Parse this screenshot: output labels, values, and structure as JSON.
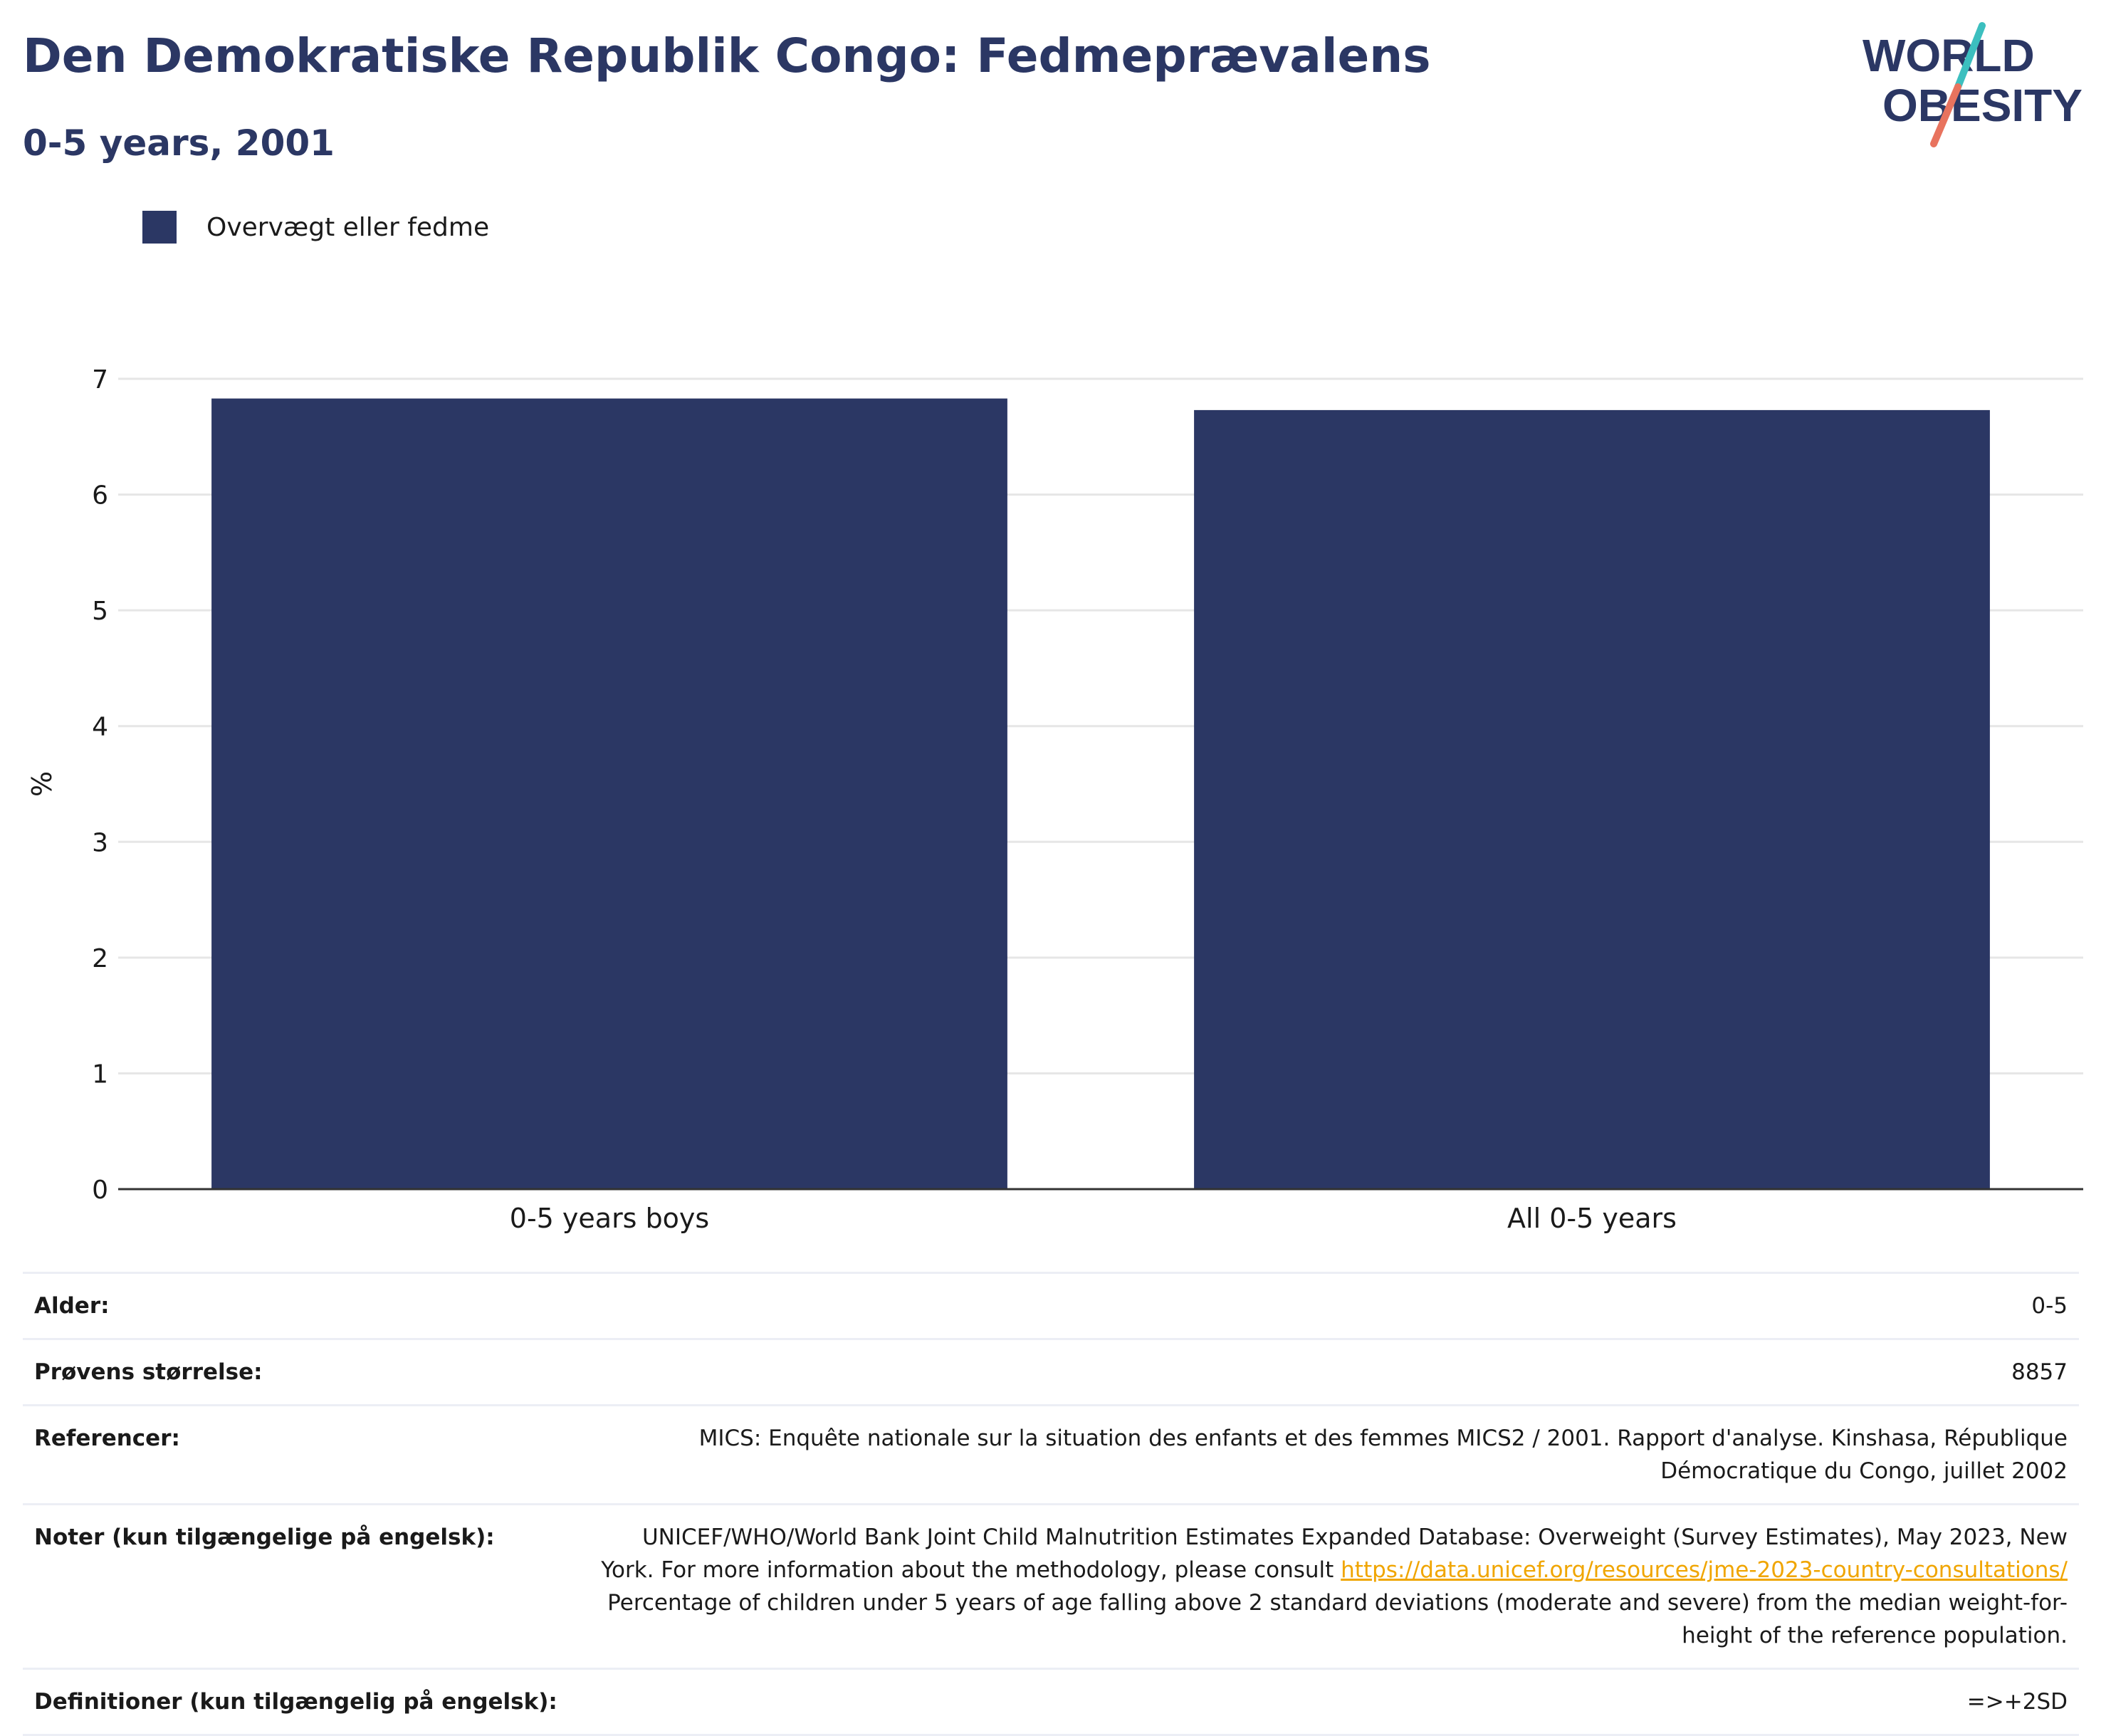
{
  "header": {
    "title": "Den Demokratiske Republik Congo: Fedmeprævalens",
    "subtitle": "0-5 years, 2001"
  },
  "logo": {
    "line1": "WORLD",
    "line2": "OBESITY",
    "icon": "world-obesity-logo"
  },
  "colors": {
    "bar": "#2b3764",
    "title": "#2b3764",
    "logo_teal": "#3cbfbf",
    "logo_coral": "#e8735e",
    "link": "#f0a500",
    "grid": "#e6e6e6",
    "axis": "#333333"
  },
  "legend": {
    "label": "Overvægt eller fedme",
    "placement": "top-left"
  },
  "chart_data": {
    "type": "bar",
    "categories": [
      "0-5 years boys",
      "All 0-5 years"
    ],
    "series": [
      {
        "name": "Overvægt eller fedme",
        "values": [
          6.83,
          6.73
        ]
      }
    ],
    "ylabel": "%",
    "xlabel": "",
    "ylim": [
      0,
      7
    ],
    "yticks": [
      0,
      1,
      2,
      3,
      4,
      5,
      6,
      7
    ],
    "grid": true
  },
  "info": [
    {
      "label": "Alder:",
      "value": "0-5"
    },
    {
      "label": "Prøvens størrelse:",
      "value": "8857"
    },
    {
      "label": "Referencer:",
      "value": "MICS: Enquête nationale sur la situation des enfants et des femmes MICS2 / 2001. Rapport d'analyse. Kinshasa, République Démocratique du Congo, juillet 2002"
    },
    {
      "label": "Noter (kun tilgængelige på engelsk):",
      "value_before": "UNICEF/WHO/World Bank Joint Child Malnutrition Estimates Expanded Database: Overweight (Survey Estimates), May 2023, New York. For more information about the methodology, please consult ",
      "link": "https://data.unicef.org/resources/jme-2023-country-consultations/",
      "value_after": " Percentage of children under 5 years of age falling above 2 standard deviations (moderate and severe) from the median weight-for-height of the reference population."
    },
    {
      "label": "Definitioner (kun tilgængelig på engelsk):",
      "value": "=>+2SD"
    }
  ]
}
